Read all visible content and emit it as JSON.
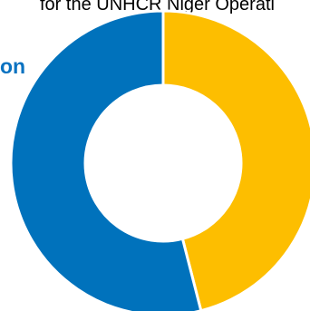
{
  "header_text": "for the UNHCR Niger Operati",
  "side_label": "on",
  "chart_data": {
    "type": "pie",
    "title": "",
    "labels": [
      "",
      ""
    ],
    "values": [
      46,
      54
    ],
    "colors": [
      "#FDBE00",
      "#0072BC"
    ],
    "donut": true,
    "start": "top",
    "direction": "clockwise",
    "separator_color": "#ffffff"
  }
}
